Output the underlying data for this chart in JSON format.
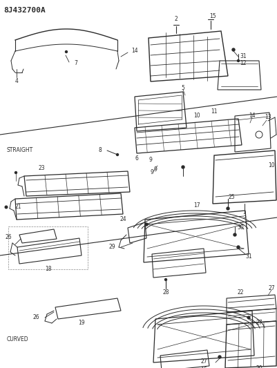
{
  "title": "8J432700A",
  "bg_color": "#ffffff",
  "lc": "#2a2a2a",
  "straight_label": "STRAIGHT",
  "curved_label": "CURVED",
  "fw": 4.01,
  "fh": 5.33,
  "dpi": 100
}
